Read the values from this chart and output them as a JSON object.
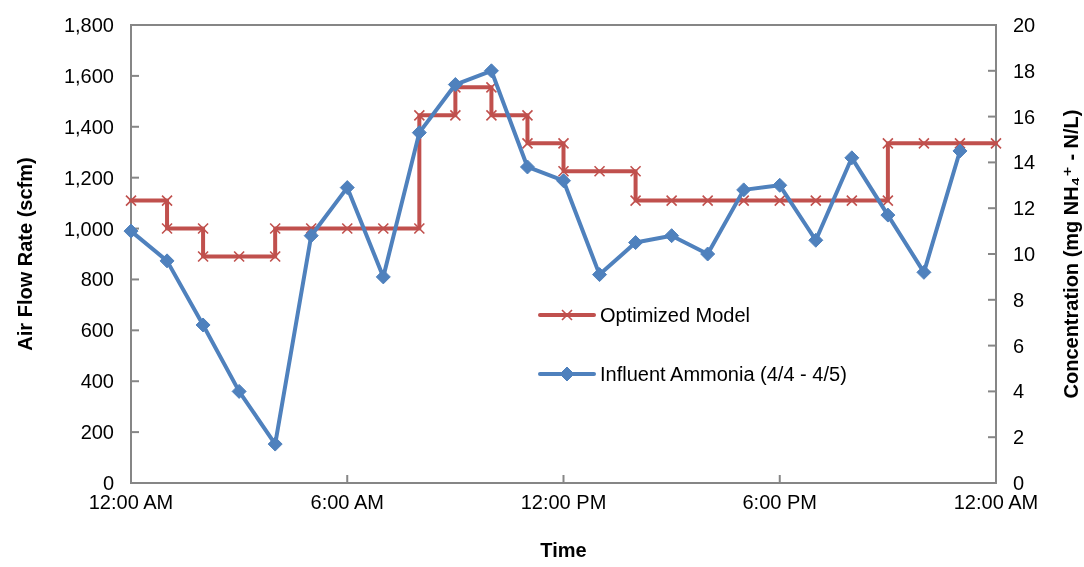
{
  "chart_data": {
    "type": "line",
    "xlabel": "Time",
    "ylabel": "Air Flow Rate (scfm)",
    "y2label": "Concentration (mg NH₄⁺ - N/L)",
    "xlim": [
      0,
      24
    ],
    "xticks": [
      {
        "value": 0,
        "label": "12:00 AM"
      },
      {
        "value": 6,
        "label": "6:00 AM"
      },
      {
        "value": 12,
        "label": "12:00 PM"
      },
      {
        "value": 18,
        "label": "6:00 PM"
      },
      {
        "value": 24,
        "label": "12:00 AM"
      }
    ],
    "ylim": [
      0,
      1800
    ],
    "yticks": [
      0,
      200,
      400,
      600,
      800,
      {
        "value": 1000,
        "label": "1,000"
      },
      {
        "value": 1200,
        "label": "1,200"
      },
      {
        "value": 1400,
        "label": "1,400"
      },
      {
        "value": 1600,
        "label": "1,600"
      },
      {
        "value": 1800,
        "label": "1,800"
      }
    ],
    "y2lim": [
      0,
      20
    ],
    "y2ticks": [
      0,
      2,
      4,
      6,
      8,
      10,
      12,
      14,
      16,
      18,
      20
    ],
    "grid": false,
    "legend": "bottom right",
    "series": [
      {
        "name": "Optimized Model",
        "marker": "cross",
        "color": "#c0504d",
        "x": [
          0,
          1,
          1,
          2,
          2,
          3,
          4,
          4,
          5,
          6,
          7,
          8,
          8,
          9,
          9,
          10,
          10,
          11,
          11,
          12,
          12,
          13,
          14,
          14,
          15,
          16,
          17,
          18,
          19,
          20,
          21,
          21,
          22,
          23,
          24
        ],
        "values": [
          1110,
          1110,
          1000,
          1000,
          890,
          890,
          890,
          1000,
          1000,
          1000,
          1000,
          1000,
          1445,
          1445,
          1555,
          1555,
          1445,
          1445,
          1335,
          1335,
          1225,
          1225,
          1225,
          1110,
          1110,
          1110,
          1110,
          1110,
          1110,
          1110,
          1110,
          1335,
          1335,
          1335,
          1335
        ]
      },
      {
        "name": "Influent Ammonia (4/4 - 4/5)",
        "marker": "diamond",
        "axis": "y2",
        "color": "#4f81bd",
        "x": [
          0,
          1,
          2,
          3,
          4,
          5,
          6,
          7,
          8,
          9,
          10,
          11,
          12,
          13,
          14,
          15,
          16,
          17,
          18,
          19,
          20,
          21,
          22,
          23
        ],
        "values": [
          11.0,
          9.7,
          6.9,
          4.0,
          1.7,
          10.8,
          12.9,
          9.0,
          15.3,
          17.4,
          18.0,
          13.8,
          13.2,
          9.1,
          10.5,
          10.8,
          10.0,
          12.8,
          13.0,
          10.6,
          14.2,
          11.7,
          9.2,
          14.5
        ]
      }
    ]
  }
}
